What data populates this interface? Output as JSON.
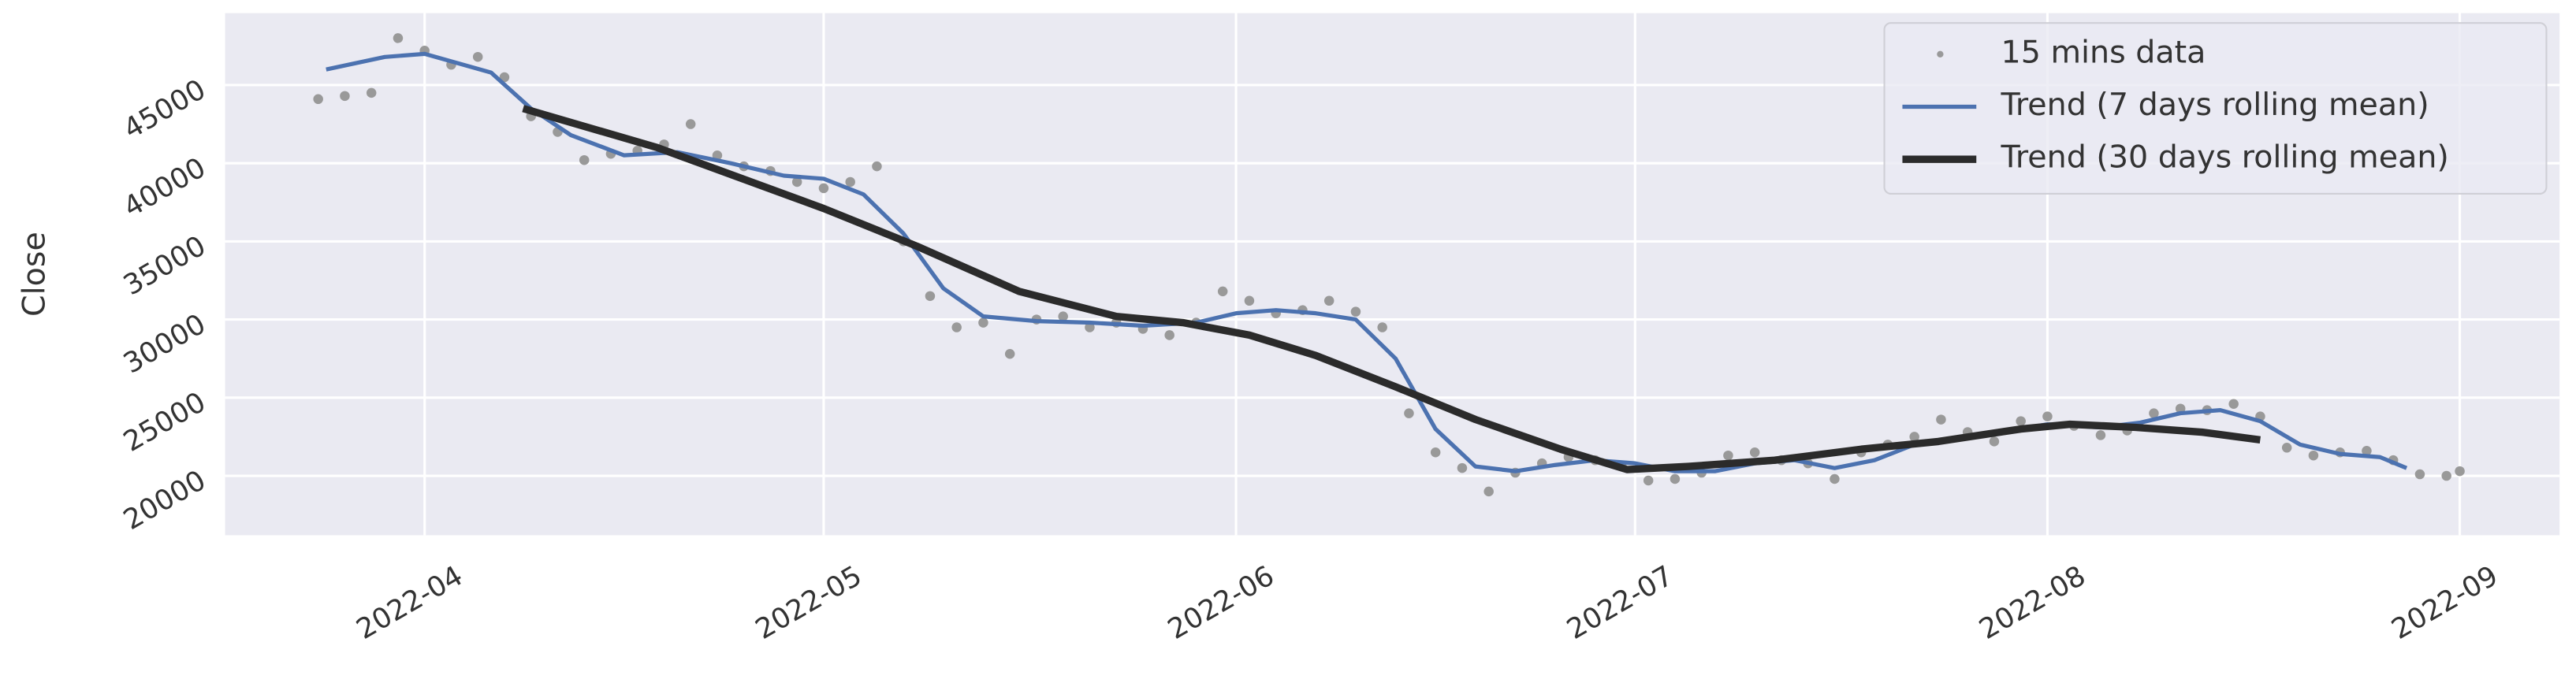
{
  "chart_data": {
    "type": "line",
    "ylabel": "Close",
    "grid": true,
    "legend": "upper right",
    "background": "#eaeaf2",
    "xlim": [
      76,
      251.5
    ],
    "ylim": [
      16200,
      49600
    ],
    "xticks": [
      {
        "value": 91,
        "label": "2022-04"
      },
      {
        "value": 121,
        "label": "2022-05"
      },
      {
        "value": 152,
        "label": "2022-06"
      },
      {
        "value": 182,
        "label": "2022-07"
      },
      {
        "value": 213,
        "label": "2022-08"
      },
      {
        "value": 244,
        "label": "2022-09"
      }
    ],
    "yticks": [
      20000,
      25000,
      30000,
      35000,
      40000,
      45000
    ],
    "series": [
      {
        "name": "15 mins data",
        "kind": "scatter",
        "color": "#999999",
        "x": [
          83,
          85,
          87,
          89,
          91,
          93,
          95,
          97,
          99,
          101,
          103,
          105,
          107,
          109,
          111,
          113,
          115,
          117,
          119,
          121,
          123,
          125,
          127,
          129,
          131,
          133,
          135,
          137,
          139,
          141,
          143,
          145,
          147,
          149,
          151,
          153,
          155,
          157,
          159,
          161,
          163,
          165,
          167,
          169,
          171,
          173,
          175,
          177,
          179,
          181,
          183,
          185,
          187,
          189,
          191,
          193,
          195,
          197,
          199,
          201,
          203,
          205,
          207,
          209,
          211,
          213,
          215,
          217,
          219,
          221,
          223,
          225,
          227,
          229,
          231,
          233,
          235,
          237,
          239,
          241,
          243,
          244
        ],
        "values": [
          44100,
          44300,
          44500,
          48000,
          47200,
          46300,
          46800,
          45500,
          43000,
          42000,
          40200,
          40600,
          40800,
          41200,
          42500,
          40500,
          39800,
          39500,
          38800,
          38400,
          38800,
          39800,
          35000,
          31500,
          29500,
          29800,
          27800,
          30000,
          30200,
          29500,
          29800,
          29400,
          29000,
          29800,
          31800,
          31200,
          30400,
          30600,
          31200,
          30500,
          29500,
          24000,
          21500,
          20500,
          19000,
          20200,
          20800,
          21200,
          21000,
          20600,
          19700,
          19800,
          20200,
          21300,
          21500,
          21000,
          20800,
          19800,
          21500,
          22000,
          22500,
          23600,
          22800,
          22200,
          23500,
          23800,
          23200,
          22600,
          22900,
          24000,
          24300,
          24200,
          24600,
          23800,
          21800,
          21300,
          21500,
          21600,
          21000,
          20100,
          20000,
          20300
        ]
      },
      {
        "name": "Trend (7 days rolling mean)",
        "kind": "line",
        "color": "#4c72b0",
        "x": [
          83.6,
          88,
          91,
          96,
          99,
          102,
          106,
          110,
          114,
          118,
          121,
          124,
          127,
          130,
          133,
          137,
          141,
          145,
          149,
          152,
          155,
          158,
          161,
          164,
          167,
          170,
          173,
          176,
          179,
          182,
          185,
          188,
          191,
          194,
          197,
          200,
          203,
          206,
          209,
          213,
          217,
          220,
          223,
          226,
          229,
          232,
          235,
          238,
          240
        ],
        "values": [
          46000,
          46800,
          47000,
          45800,
          43500,
          41800,
          40500,
          40700,
          40000,
          39200,
          39000,
          38000,
          35500,
          32000,
          30200,
          29900,
          29800,
          29600,
          29800,
          30400,
          30600,
          30400,
          30000,
          27500,
          23000,
          20600,
          20300,
          20700,
          21000,
          20800,
          20300,
          20300,
          20800,
          21000,
          20500,
          21000,
          22000,
          22400,
          22700,
          23300,
          23100,
          23400,
          24000,
          24200,
          23500,
          22000,
          21400,
          21200,
          20500
        ]
      },
      {
        "name": "Trend (30 days rolling mean)",
        "kind": "line",
        "color": "#2b2b2b",
        "x": [
          98.4,
          108.5,
          121,
          128,
          135.7,
          143,
          148,
          153,
          158,
          164,
          170,
          176.4,
          181.4,
          186,
          192.5,
          199,
          204.8,
          211,
          214.7,
          219.6,
          224.6,
          229
        ],
        "values": [
          43500,
          41000,
          37100,
          34700,
          31800,
          30200,
          29800,
          29000,
          27700,
          25700,
          23600,
          21700,
          20400,
          20600,
          21000,
          21700,
          22200,
          23000,
          23300,
          23100,
          22800,
          22300
        ]
      }
    ]
  }
}
